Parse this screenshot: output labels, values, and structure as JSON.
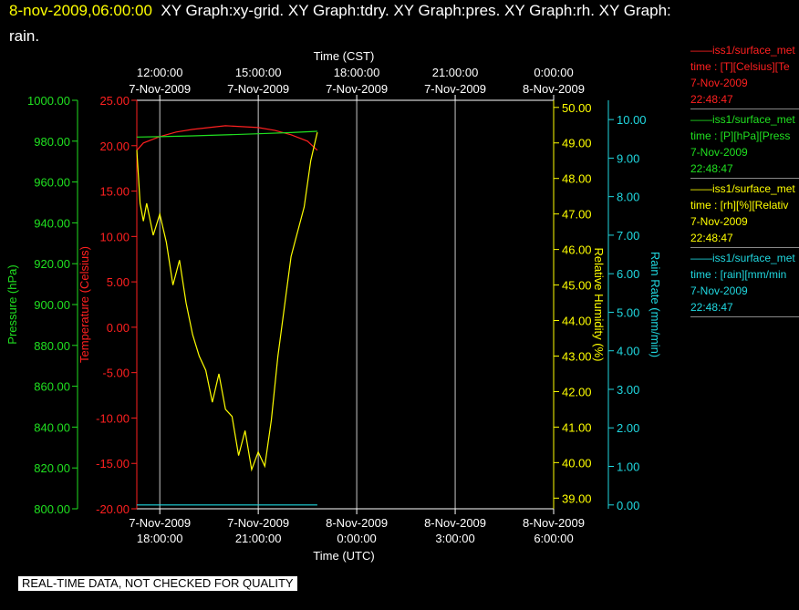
{
  "header": {
    "date_label": "8-nov-2009,06:00:00",
    "graph_list": "XY Graph:xy-grid.  XY Graph:tdry.  XY Graph:pres.  XY Graph:rh.  XY Graph:",
    "graph_list_cont": "rain."
  },
  "colors": {
    "background": "#000000",
    "temperature": "#ff2020",
    "pressure": "#20e020",
    "humidity": "#ffff00",
    "rain": "#20d8e0",
    "axis": "#ffffff"
  },
  "legend": [
    {
      "name": "——iss1/surface_met",
      "field": "time : [T][Celsius][Te",
      "date": "7-Nov-2009",
      "time": "22:48:47",
      "color": "#ff2020"
    },
    {
      "name": "——iss1/surface_met",
      "field": "time : [P][hPa][Press",
      "date": "7-Nov-2009",
      "time": "22:48:47",
      "color": "#20e020"
    },
    {
      "name": "——iss1/surface_met",
      "field": "time : [rh][%][Relativ",
      "date": "7-Nov-2009",
      "time": "22:48:47",
      "color": "#ffff00"
    },
    {
      "name": "——iss1/surface_met",
      "field": "time : [rain][mm/min",
      "date": "7-Nov-2009",
      "time": "22:48:47",
      "color": "#20d8e0"
    }
  ],
  "footer": {
    "quality_note": "REAL-TIME DATA, NOT CHECKED FOR QUALITY"
  },
  "chart_data": {
    "type": "line",
    "top_axis": {
      "title": "Time (CST)",
      "ticks": [
        {
          "time": "12:00:00",
          "date": "7-Nov-2009"
        },
        {
          "time": "15:00:00",
          "date": "7-Nov-2009"
        },
        {
          "time": "18:00:00",
          "date": "7-Nov-2009"
        },
        {
          "time": "21:00:00",
          "date": "7-Nov-2009"
        },
        {
          "time": "0:00:00",
          "date": "8-Nov-2009"
        }
      ]
    },
    "bottom_axis": {
      "title": "Time (UTC)",
      "ticks": [
        {
          "date": "7-Nov-2009",
          "time": "18:00:00"
        },
        {
          "date": "7-Nov-2009",
          "time": "21:00:00"
        },
        {
          "date": "8-Nov-2009",
          "time": "0:00:00"
        },
        {
          "date": "8-Nov-2009",
          "time": "3:00:00"
        },
        {
          "date": "8-Nov-2009",
          "time": "6:00:00"
        }
      ],
      "range_hours_utc": [
        17.3,
        30.0
      ]
    },
    "axes": {
      "pressure": {
        "label": "Pressure (hPa)",
        "range": [
          800,
          1000
        ],
        "ticks": [
          "1000.00",
          "980.00",
          "960.00",
          "940.00",
          "920.00",
          "900.00",
          "880.00",
          "860.00",
          "840.00",
          "820.00",
          "800.00"
        ]
      },
      "temperature": {
        "label": "Temperature (Celsius)",
        "range": [
          -20,
          25
        ],
        "ticks": [
          "25.00",
          "20.00",
          "15.00",
          "10.00",
          "5.00",
          "0.00",
          "-5.00",
          "-10.00",
          "-15.00",
          "-20.00"
        ]
      },
      "humidity": {
        "label": "Relative Humidity (%)",
        "range": [
          38.7,
          50.2
        ],
        "ticks": [
          "50.00",
          "49.00",
          "48.00",
          "47.00",
          "46.00",
          "45.00",
          "44.00",
          "43.00",
          "42.00",
          "41.00",
          "40.00",
          "39.00"
        ]
      },
      "rain": {
        "label": "Rain Rate (mm/min)",
        "range": [
          -0.1,
          10.5
        ],
        "ticks": [
          "10.00",
          "9.00",
          "8.00",
          "7.00",
          "6.00",
          "5.00",
          "4.00",
          "3.00",
          "2.00",
          "1.00",
          "0.00"
        ]
      }
    },
    "series": [
      {
        "name": "Temperature",
        "axis": "temperature",
        "x_utc_hours": [
          17.3,
          17.5,
          18.0,
          18.5,
          19.0,
          19.5,
          20.0,
          20.5,
          21.0,
          21.5,
          22.0,
          22.5,
          22.8
        ],
        "values": [
          19.5,
          20.3,
          21.0,
          21.5,
          21.8,
          22.0,
          22.2,
          22.1,
          22.0,
          21.7,
          21.2,
          20.5,
          19.5
        ]
      },
      {
        "name": "Pressure",
        "axis": "pressure",
        "x_utc_hours": [
          17.3,
          18.0,
          19.0,
          20.0,
          21.0,
          22.0,
          22.8
        ],
        "values": [
          982.0,
          982.2,
          982.6,
          983.1,
          983.6,
          984.2,
          984.8
        ]
      },
      {
        "name": "Relative Humidity",
        "axis": "humidity",
        "x_utc_hours": [
          17.3,
          17.4,
          17.5,
          17.6,
          17.8,
          18.0,
          18.2,
          18.4,
          18.6,
          18.8,
          19.0,
          19.2,
          19.4,
          19.6,
          19.8,
          20.0,
          20.2,
          20.4,
          20.6,
          20.8,
          21.0,
          21.2,
          21.4,
          21.6,
          21.8,
          22.0,
          22.2,
          22.4,
          22.6,
          22.8
        ],
        "values": [
          48.8,
          47.3,
          46.8,
          47.3,
          46.4,
          47.0,
          46.2,
          45.0,
          45.7,
          44.5,
          43.6,
          43.0,
          42.6,
          41.7,
          42.5,
          41.5,
          41.3,
          40.2,
          40.9,
          39.8,
          40.3,
          39.9,
          41.2,
          43.0,
          44.4,
          45.8,
          46.5,
          47.2,
          48.5,
          49.3
        ]
      },
      {
        "name": "Rain Rate",
        "axis": "rain",
        "x_utc_hours": [
          17.3,
          22.8
        ],
        "values": [
          0.0,
          0.0
        ]
      }
    ]
  }
}
